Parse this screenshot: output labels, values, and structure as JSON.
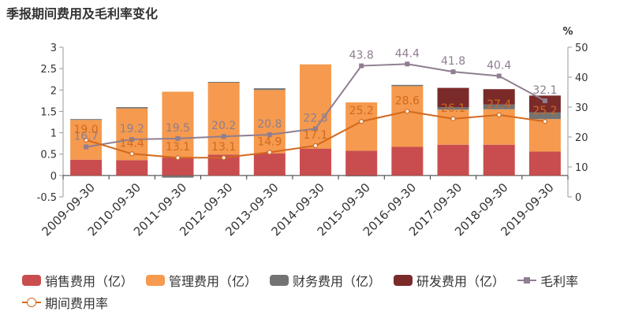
{
  "title": "季报期间费用及毛利率变化",
  "left_axis": {
    "ticks": [
      "-0.5",
      "0",
      "0.5",
      "1",
      "1.5",
      "2",
      "2.5",
      "3"
    ]
  },
  "right_axis": {
    "unit": "%",
    "ticks": [
      "0",
      "10",
      "20",
      "30",
      "40",
      "50"
    ]
  },
  "colors": {
    "sales": "#c94d4f",
    "admin": "#f59a4e",
    "finance": "#737373",
    "rd": "#7b2a2a",
    "gross": "#8f7e91",
    "period": "#d2691e"
  },
  "legend": {
    "sales": "销售费用（亿）",
    "admin": "管理费用（亿）",
    "finance": "财务费用（亿）",
    "rd": "研发费用（亿）",
    "gross": "毛利率",
    "period": "期间费用率"
  },
  "chart_data": {
    "type": "bar",
    "stacked": true,
    "categories": [
      "2009-09-30",
      "2010-09-30",
      "2011-09-30",
      "2012-09-30",
      "2013-09-30",
      "2014-09-30",
      "2015-09-30",
      "2016-09-30",
      "2017-09-30",
      "2018-09-30",
      "2019-09-30"
    ],
    "left_ylim": [
      -0.5,
      3
    ],
    "right_ylim": [
      0,
      50
    ],
    "series": [
      {
        "name": "销售费用（亿）",
        "type": "bar",
        "axis": "left",
        "values": [
          0.37,
          0.36,
          0.42,
          0.49,
          0.52,
          0.63,
          0.58,
          0.67,
          0.72,
          0.72,
          0.56
        ]
      },
      {
        "name": "管理费用（亿）",
        "type": "bar",
        "axis": "left",
        "values": [
          0.93,
          1.21,
          1.54,
          1.69,
          1.48,
          1.97,
          1.13,
          1.42,
          0.82,
          0.83,
          0.76
        ]
      },
      {
        "name": "财务费用（亿）",
        "type": "bar",
        "axis": "left",
        "values": [
          0.02,
          0.03,
          -0.05,
          0.01,
          0.04,
          0.0,
          -0.02,
          0.03,
          0.06,
          0.11,
          0.16
        ]
      },
      {
        "name": "研发费用（亿）",
        "type": "bar",
        "axis": "left",
        "values": [
          0,
          0,
          0,
          0,
          0,
          0,
          0,
          0,
          0.45,
          0.36,
          0.39
        ]
      },
      {
        "name": "毛利率",
        "type": "line",
        "axis": "right",
        "values": [
          16.7,
          19.2,
          19.5,
          20.2,
          20.8,
          22.8,
          43.8,
          44.4,
          41.8,
          40.4,
          32.1
        ]
      },
      {
        "name": "期间费用率",
        "type": "line",
        "axis": "right",
        "values": [
          19.0,
          14.4,
          13.1,
          13.1,
          14.9,
          17.1,
          25.2,
          28.6,
          26.1,
          27.4,
          25.2
        ]
      }
    ]
  }
}
